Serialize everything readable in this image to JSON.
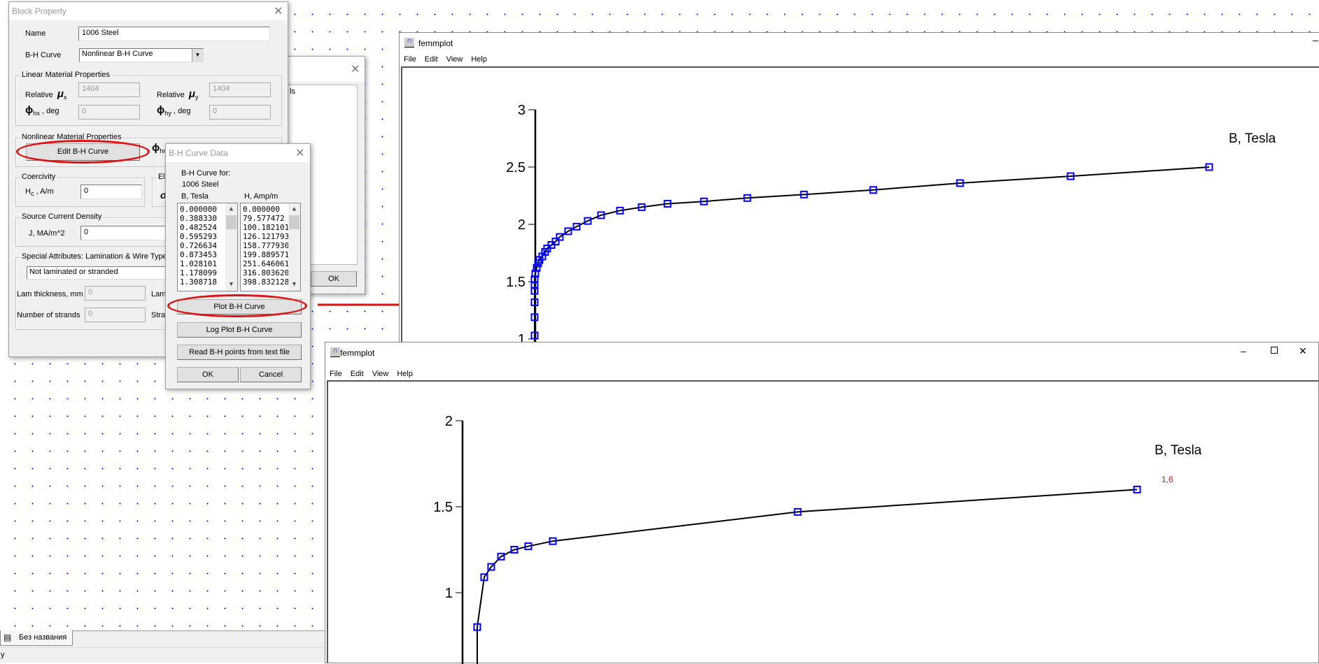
{
  "block_property": {
    "title": "Block Property",
    "name_label": "Name",
    "name_value": "1006 Steel",
    "bh_label": "B-H Curve",
    "bh_value": "Nonlinear B-H Curve",
    "linear_group": "Linear Material Properties",
    "mu_x_label": "Relative",
    "mu_x_sym": "μ",
    "mu_x_sub": "x",
    "mu_x_value": "1404",
    "mu_y_label": "Relative",
    "mu_y_sym": "μ",
    "mu_y_sub": "y",
    "mu_y_value": "1404",
    "phi_hx_sym": "ϕ",
    "phi_hx_sub": "hx",
    "phi_hx_unit": ", deg",
    "phi_hx_value": "0",
    "phi_hy_sym": "ϕ",
    "phi_hy_sub": "hy",
    "phi_hy_unit": ", deg",
    "phi_hy_value": "0",
    "nonlinear_group": "Nonlinear Material Properties",
    "edit_bh_button": "Edit B-H Curve",
    "phi_hn_sym": "ϕ",
    "phi_hn_sub": "hn",
    "coercivity_group": "Coercivity",
    "hc_label": "H",
    "hc_sub": "c",
    "hc_unit": ", A/m",
    "hc_value": "0",
    "elec_group": "Ele",
    "elec_sym": "σ",
    "source_group": "Source Current Density",
    "j_label": "J, MA/m^2",
    "j_value": "0",
    "special_group": "Special Attributes:  Lamination & Wire Type",
    "lam_type_value": "Not laminated or stranded",
    "lam_thick_label": "Lam thickness, mm",
    "lam_thick_value": "0",
    "lam_fill_label": "Lam",
    "strands_label": "Number of strands",
    "strands_value": "0",
    "strand_dia_label": "Stra"
  },
  "behind_dialog": {
    "text": "ls",
    "ok": "OK"
  },
  "bh_data": {
    "title": "B-H Curve Data",
    "for_label": "B-H Curve for:",
    "material": "1006 Steel",
    "b_header": "B, Tesla",
    "h_header": "H, Amp/m",
    "b_values": [
      "0.000000",
      "0.388330",
      "0.482524",
      "0.595293",
      "0.726634",
      "0.873453",
      "1.028101",
      "1.178099",
      "1.308718"
    ],
    "h_values": [
      "0.000000",
      "79.577472",
      "100.182101",
      "126.121793",
      "158.777930",
      "199.889571",
      "251.646061",
      "316.803620",
      "398.832128"
    ],
    "plot_button": "Plot B-H Curve",
    "log_plot_button": "Log Plot B-H Curve",
    "read_button": "Read B-H points from text file",
    "ok": "OK",
    "cancel": "Cancel"
  },
  "plot_window_top": {
    "title": "femmplot",
    "menu": [
      "File",
      "Edit",
      "View",
      "Help"
    ]
  },
  "plot_window_bottom": {
    "title": "femmplot",
    "menu": [
      "File",
      "Edit",
      "View",
      "Help"
    ]
  },
  "chart_data": [
    {
      "type": "line",
      "ylabel": "B, Tesla",
      "yticks": [
        "1",
        "1.5",
        "2",
        "2.5",
        "3"
      ],
      "ylim": [
        1,
        3
      ],
      "markers": "blue squares",
      "y": [
        2.5,
        2.42,
        2.36,
        2.3,
        2.26,
        2.23,
        2.2,
        2.18,
        2.15,
        2.12,
        2.08,
        2.03,
        1.98,
        1.94,
        1.89,
        1.85,
        1.82,
        1.79,
        1.76,
        1.72,
        1.69,
        1.66,
        1.62,
        1.57,
        1.52,
        1.47,
        1.42,
        1.32,
        1.19,
        1.03
      ],
      "colors": {
        "line": "#000000",
        "marker": "#0000ff"
      }
    },
    {
      "type": "line",
      "ylabel": "B, Tesla",
      "yticks": [
        "1",
        "1.5",
        "2"
      ],
      "ylim": [
        0.75,
        2
      ],
      "markers": "blue squares",
      "y": [
        1.6,
        1.47,
        1.3,
        1.27,
        1.25,
        1.21,
        1.15,
        1.09,
        0.8
      ],
      "annotation": "1,6",
      "colors": {
        "line": "#000000",
        "marker": "#0000ff",
        "annotation": "#ff0000"
      }
    }
  ],
  "taskbar": {
    "tab_label": "Без названия",
    "status_text": "y"
  },
  "colors": {
    "highlight": "#e01010",
    "grid_dots": "#0000ff"
  }
}
